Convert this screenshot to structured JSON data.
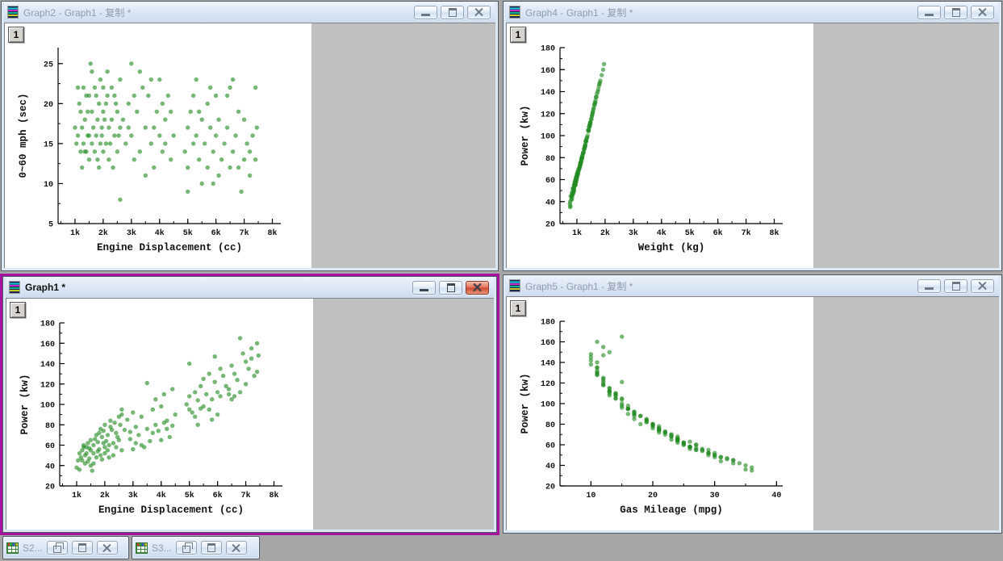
{
  "windows": [
    {
      "id": "graph2",
      "title": "Graph2 - Graph1 - 复制 *",
      "active": false,
      "layer_badge": "1"
    },
    {
      "id": "graph4",
      "title": "Graph4 - Graph1 - 复制 *",
      "active": false,
      "layer_badge": "1"
    },
    {
      "id": "graph1",
      "title": "Graph1 *",
      "active": true,
      "layer_badge": "1"
    },
    {
      "id": "graph5",
      "title": "Graph5 - Graph1 - 复制 *",
      "active": false,
      "layer_badge": "1"
    }
  ],
  "minimized_windows": [
    {
      "id": "s2",
      "title": "S2..."
    },
    {
      "id": "s3",
      "title": "S3..."
    }
  ],
  "icons": {
    "window_icon": "graph-page-icon",
    "minimized_icon": "worksheet-grid-icon",
    "titlebar_buttons": [
      "minimize",
      "restore",
      "close"
    ],
    "minimized_buttons": [
      "restore",
      "maximize",
      "close"
    ]
  },
  "colors": {
    "mdi_background": "#a6a6a6",
    "window_frame": "#d9e6f4",
    "titlebar_top": "#ecf3fb",
    "titlebar_bottom": "#ccdcee",
    "inactive_title_text": "#8e9dad",
    "active_title_text": "#111111",
    "client_gray": "#c0c0c0",
    "page_white": "#ffffff",
    "active_border": "#a812a0",
    "close_button_red": "#cd4a30",
    "point_green": "#228b22"
  },
  "chart_data": {
    "type": "scatter",
    "shared_dataset": true,
    "point_color": "#228b22",
    "point_opacity": 0.62,
    "point_radius": 2.7,
    "legend": "none",
    "grid": false,
    "dataset_columns": [
      "engine_displacement_cc",
      "time_0_60_mph_sec",
      "power_kw",
      "weight_kg",
      "gas_mileage_mpg"
    ],
    "cars": [
      [
        1100,
        16,
        52,
        850,
        29
      ],
      [
        1150,
        20,
        48,
        820,
        31
      ],
      [
        1200,
        14,
        55,
        900,
        28
      ],
      [
        1200,
        19,
        45,
        780,
        33
      ],
      [
        1250,
        17,
        60,
        950,
        27
      ],
      [
        1300,
        15,
        50,
        860,
        30
      ],
      [
        1300,
        22,
        42,
        800,
        34
      ],
      [
        1350,
        18,
        58,
        920,
        26
      ],
      [
        1400,
        14,
        62,
        980,
        25
      ],
      [
        1450,
        19,
        47,
        840,
        32
      ],
      [
        1500,
        16,
        55,
        900,
        29
      ],
      [
        1500,
        21,
        40,
        760,
        35
      ],
      [
        1000,
        17,
        38,
        750,
        36
      ],
      [
        1050,
        15,
        45,
        800,
        33
      ],
      [
        1100,
        22,
        36,
        770,
        35
      ],
      [
        1500,
        13,
        65,
        1000,
        24
      ],
      [
        1450,
        16,
        57,
        930,
        27
      ],
      [
        1400,
        21,
        44,
        830,
        31
      ],
      [
        1350,
        14,
        52,
        880,
        29
      ],
      [
        1250,
        12,
        58,
        940,
        26
      ],
      [
        1600,
        15,
        60,
        950,
        27
      ],
      [
        1600,
        19,
        52,
        880,
        30
      ],
      [
        1650,
        17,
        66,
        1010,
        24
      ],
      [
        1700,
        14,
        70,
        1060,
        23
      ],
      [
        1700,
        22,
        48,
        860,
        31
      ],
      [
        1750,
        16,
        63,
        980,
        26
      ],
      [
        1800,
        13,
        72,
        1100,
        22
      ],
      [
        1800,
        18,
        56,
        920,
        28
      ],
      [
        1850,
        20,
        50,
        890,
        30
      ],
      [
        1900,
        15,
        68,
        1040,
        24
      ],
      [
        1900,
        23,
        46,
        850,
        32
      ],
      [
        1950,
        17,
        74,
        1120,
        21
      ],
      [
        2000,
        14,
        80,
        1180,
        20
      ],
      [
        2000,
        19,
        58,
        950,
        26
      ],
      [
        1550,
        25,
        35,
        760,
        36
      ],
      [
        1600,
        24,
        42,
        820,
        33
      ],
      [
        1750,
        21,
        54,
        900,
        28
      ],
      [
        1850,
        12,
        76,
        1140,
        21
      ],
      [
        1950,
        16,
        62,
        970,
        25
      ],
      [
        2000,
        22,
        52,
        900,
        29
      ],
      [
        2100,
        15,
        70,
        1080,
        23
      ],
      [
        2100,
        20,
        55,
        940,
        27
      ],
      [
        2200,
        17,
        78,
        1150,
        21
      ],
      [
        2200,
        13,
        84,
        1220,
        19
      ],
      [
        2300,
        18,
        62,
        1000,
        25
      ],
      [
        2300,
        22,
        50,
        900,
        29
      ],
      [
        2400,
        16,
        72,
        1100,
        22
      ],
      [
        2400,
        21,
        58,
        960,
        26
      ],
      [
        2500,
        14,
        88,
        1250,
        18
      ],
      [
        2500,
        19,
        65,
        1030,
        24
      ],
      [
        2600,
        17,
        90,
        1280,
        17
      ],
      [
        2600,
        23,
        55,
        950,
        27
      ],
      [
        2050,
        18,
        64,
        1010,
        24
      ],
      [
        2150,
        21,
        60,
        980,
        25
      ],
      [
        2250,
        15,
        75,
        1120,
        21
      ],
      [
        2350,
        12,
        82,
        1200,
        19
      ],
      [
        2450,
        20,
        68,
        1050,
        23
      ],
      [
        2550,
        16,
        80,
        1170,
        20
      ],
      [
        2600,
        8,
        95,
        1320,
        16
      ],
      [
        2150,
        24,
        48,
        880,
        30
      ],
      [
        2700,
        18,
        75,
        1130,
        21
      ],
      [
        2800,
        15,
        85,
        1230,
        19
      ],
      [
        2900,
        20,
        66,
        1040,
        24
      ],
      [
        3000,
        16,
        92,
        1300,
        17
      ],
      [
        3100,
        13,
        78,
        1160,
        20
      ],
      [
        3200,
        19,
        70,
        1090,
        22
      ],
      [
        3300,
        24,
        60,
        990,
        25
      ],
      [
        3300,
        14,
        88,
        1260,
        18
      ],
      [
        3500,
        17,
        76,
        1140,
        21
      ],
      [
        3600,
        21,
        64,
        1020,
        24
      ],
      [
        3700,
        15,
        95,
        1330,
        16
      ],
      [
        3700,
        23,
        72,
        1110,
        21
      ],
      [
        3800,
        12,
        105,
        1420,
        15
      ],
      [
        3800,
        17,
        80,
        1180,
        20
      ],
      [
        3900,
        19,
        74,
        1130,
        21
      ],
      [
        4000,
        16,
        98,
        1360,
        16
      ],
      [
        4100,
        14,
        110,
        1470,
        14
      ],
      [
        4100,
        20,
        82,
        1200,
        19
      ],
      [
        4200,
        18,
        76,
        1150,
        20
      ],
      [
        4300,
        21,
        68,
        1060,
        23
      ],
      [
        4400,
        13,
        115,
        1520,
        13
      ],
      [
        4500,
        16,
        90,
        1290,
        17
      ],
      [
        3400,
        22,
        58,
        970,
        26
      ],
      [
        3500,
        11,
        121,
        1560,
        15
      ],
      [
        3000,
        25,
        56,
        950,
        26
      ],
      [
        4200,
        15,
        84,
        1220,
        19
      ],
      [
        4000,
        23,
        65,
        1030,
        23
      ],
      [
        2900,
        17,
        73,
        1110,
        22
      ],
      [
        3100,
        21,
        62,
        1000,
        24
      ],
      [
        4400,
        19,
        79,
        1170,
        20
      ],
      [
        4900,
        14,
        100,
        1380,
        15
      ],
      [
        5000,
        17,
        95,
        1320,
        16
      ],
      [
        5000,
        12,
        108,
        1450,
        14
      ],
      [
        5100,
        19,
        92,
        1300,
        17
      ],
      [
        5200,
        15,
        112,
        1480,
        13
      ],
      [
        5200,
        21,
        88,
        1270,
        17
      ],
      [
        5300,
        16,
        104,
        1410,
        15
      ],
      [
        5400,
        13,
        118,
        1540,
        12
      ],
      [
        5500,
        18,
        98,
        1350,
        15
      ],
      [
        5500,
        10,
        125,
        1600,
        12
      ],
      [
        5600,
        15,
        110,
        1460,
        14
      ],
      [
        5700,
        20,
        95,
        1310,
        16
      ],
      [
        5700,
        12,
        130,
        1650,
        11
      ],
      [
        5800,
        17,
        105,
        1420,
        14
      ],
      [
        5900,
        14,
        122,
        1570,
        12
      ],
      [
        6000,
        16,
        112,
        1480,
        13
      ],
      [
        6000,
        21,
        90,
        1280,
        16
      ],
      [
        6100,
        11,
        135,
        1690,
        11
      ],
      [
        6100,
        18,
        108,
        1440,
        14
      ],
      [
        5000,
        9,
        140,
        1740,
        11
      ],
      [
        5800,
        22,
        85,
        1240,
        17
      ],
      [
        5300,
        23,
        80,
        1190,
        18
      ],
      [
        5400,
        19,
        96,
        1330,
        15
      ],
      [
        5900,
        10,
        147,
        1800,
        12
      ],
      [
        6200,
        13,
        128,
        1630,
        11
      ],
      [
        6300,
        15,
        118,
        1530,
        12
      ],
      [
        6400,
        17,
        110,
        1450,
        13
      ],
      [
        6500,
        12,
        138,
        1710,
        10
      ],
      [
        6500,
        22,
        105,
        1400,
        14
      ],
      [
        6600,
        14,
        130,
        1640,
        11
      ],
      [
        6700,
        16,
        124,
        1580,
        12
      ],
      [
        6800,
        19,
        112,
        1470,
        13
      ],
      [
        6900,
        9,
        150,
        1830,
        13
      ],
      [
        7000,
        13,
        142,
        1760,
        10
      ],
      [
        7000,
        18,
        120,
        1550,
        12
      ],
      [
        7100,
        15,
        135,
        1670,
        11
      ],
      [
        7200,
        11,
        155,
        1880,
        12
      ],
      [
        7300,
        16,
        128,
        1610,
        11
      ],
      [
        7400,
        13,
        160,
        1930,
        11
      ],
      [
        7450,
        17,
        148,
        1810,
        10
      ],
      [
        6400,
        21,
        115,
        1500,
        13
      ],
      [
        6600,
        23,
        108,
        1430,
        13
      ],
      [
        7200,
        14,
        145,
        1780,
        10
      ],
      [
        7400,
        22,
        132,
        1660,
        11
      ],
      [
        6800,
        12,
        165,
        1960,
        15
      ]
    ],
    "charts": [
      {
        "window": "graph2",
        "x_field": "engine_displacement_cc",
        "y_field": "time_0_60_mph_sec",
        "xlabel": "Engine Displacement (cc)",
        "ylabel": "0~60 mph (sec)",
        "xlim": [
          400,
          8300
        ],
        "ylim": [
          5,
          27
        ],
        "xticks": [
          [
            1000,
            "1k"
          ],
          [
            2000,
            "2k"
          ],
          [
            3000,
            "3k"
          ],
          [
            4000,
            "4k"
          ],
          [
            5000,
            "5k"
          ],
          [
            6000,
            "6k"
          ],
          [
            7000,
            "7k"
          ],
          [
            8000,
            "8k"
          ]
        ],
        "yticks": [
          [
            5,
            "5"
          ],
          [
            10,
            "10"
          ],
          [
            15,
            "15"
          ],
          [
            20,
            "20"
          ],
          [
            25,
            "25"
          ]
        ],
        "x_minor_step": 500,
        "y_minor_step": 2.5
      },
      {
        "window": "graph4",
        "x_field": "weight_kg",
        "y_field": "power_kw",
        "xlabel": "Weight (kg)",
        "ylabel": "Power (kw)",
        "xlim": [
          400,
          8300
        ],
        "ylim": [
          20,
          180
        ],
        "xticks": [
          [
            1000,
            "1k"
          ],
          [
            2000,
            "2k"
          ],
          [
            3000,
            "3k"
          ],
          [
            4000,
            "4k"
          ],
          [
            5000,
            "5k"
          ],
          [
            6000,
            "6k"
          ],
          [
            7000,
            "7k"
          ],
          [
            8000,
            "8k"
          ]
        ],
        "yticks": [
          [
            20,
            "20"
          ],
          [
            40,
            "40"
          ],
          [
            60,
            "60"
          ],
          [
            80,
            "80"
          ],
          [
            100,
            "100"
          ],
          [
            120,
            "120"
          ],
          [
            140,
            "140"
          ],
          [
            160,
            "160"
          ],
          [
            180,
            "180"
          ]
        ],
        "x_minor_step": 500,
        "y_minor_step": 10
      },
      {
        "window": "graph1",
        "x_field": "engine_displacement_cc",
        "y_field": "power_kw",
        "xlabel": "Engine Displacement (cc)",
        "ylabel": "Power (kw)",
        "xlim": [
          400,
          8300
        ],
        "ylim": [
          20,
          180
        ],
        "xticks": [
          [
            1000,
            "1k"
          ],
          [
            2000,
            "2k"
          ],
          [
            3000,
            "3k"
          ],
          [
            4000,
            "4k"
          ],
          [
            5000,
            "5k"
          ],
          [
            6000,
            "6k"
          ],
          [
            7000,
            "7k"
          ],
          [
            8000,
            "8k"
          ]
        ],
        "yticks": [
          [
            20,
            "20"
          ],
          [
            40,
            "40"
          ],
          [
            60,
            "60"
          ],
          [
            80,
            "80"
          ],
          [
            100,
            "100"
          ],
          [
            120,
            "120"
          ],
          [
            140,
            "140"
          ],
          [
            160,
            "160"
          ],
          [
            180,
            "180"
          ]
        ],
        "x_minor_step": 500,
        "y_minor_step": 10
      },
      {
        "window": "graph5",
        "x_field": "gas_mileage_mpg",
        "y_field": "power_kw",
        "xlabel": "Gas Mileage (mpg)",
        "ylabel": "Power (kw)",
        "xlim": [
          5,
          41
        ],
        "ylim": [
          20,
          180
        ],
        "xticks": [
          [
            10,
            "10"
          ],
          [
            20,
            "20"
          ],
          [
            30,
            "30"
          ],
          [
            40,
            "40"
          ]
        ],
        "yticks": [
          [
            20,
            "20"
          ],
          [
            40,
            "40"
          ],
          [
            60,
            "60"
          ],
          [
            80,
            "80"
          ],
          [
            100,
            "100"
          ],
          [
            120,
            "120"
          ],
          [
            140,
            "140"
          ],
          [
            160,
            "160"
          ],
          [
            180,
            "180"
          ]
        ],
        "x_minor_step": 5,
        "y_minor_step": 10
      }
    ]
  }
}
